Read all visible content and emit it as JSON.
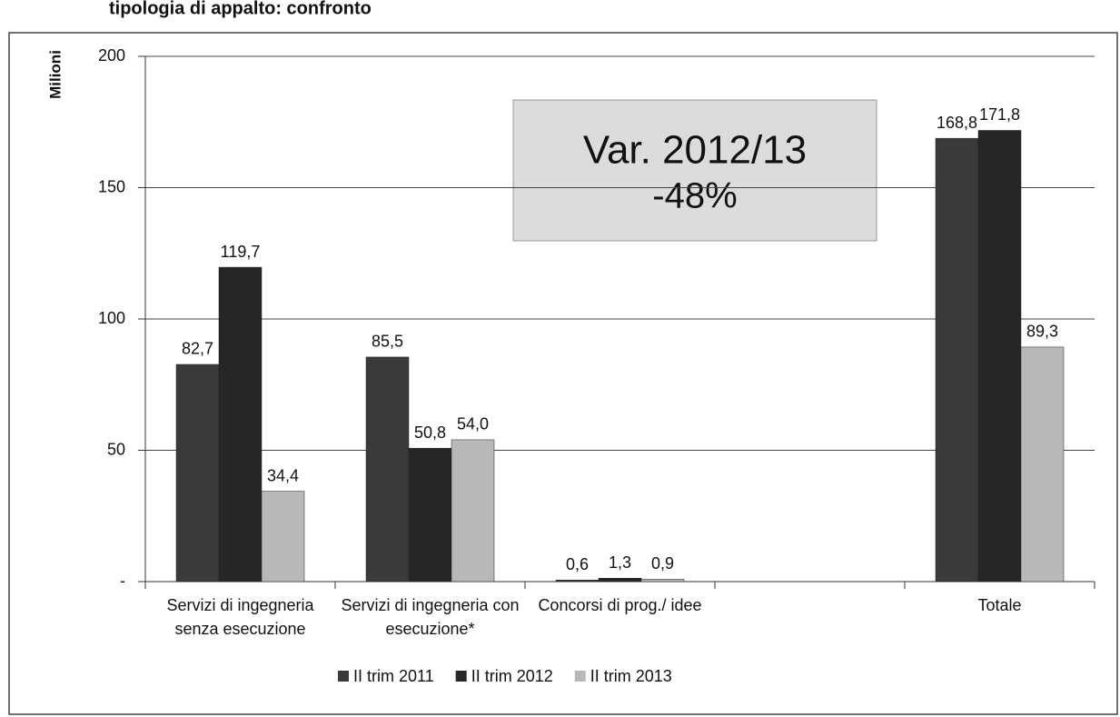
{
  "chart_data": {
    "type": "bar",
    "title": "tipologia di appalto: confronto",
    "y_label": "Milioni",
    "annotation": [
      "Var. 2012/13",
      "-48%"
    ],
    "categories": [
      "Servizi di ingegneria senza esecuzione",
      "Servizi di ingegneria con esecuzione*",
      "Concorsi di prog./ idee",
      null,
      "Totale"
    ],
    "series": [
      {
        "name": "II trim 2011",
        "color": "#3a3a3a",
        "values": [
          82.7,
          85.5,
          0.6,
          null,
          168.8
        ],
        "value_labels": [
          "82,7",
          "85,5",
          "0,6",
          null,
          "168,8"
        ]
      },
      {
        "name": "II trim 2012",
        "color": "#262626",
        "values": [
          119.7,
          50.8,
          1.3,
          null,
          171.8
        ],
        "value_labels": [
          "119,7",
          "50,8",
          "1,3",
          null,
          "171,8"
        ]
      },
      {
        "name": "II trim 2013",
        "color": "#b8b8b8",
        "values": [
          34.4,
          54.0,
          0.9,
          null,
          89.3
        ],
        "value_labels": [
          "34,4",
          "54,0",
          "0,9",
          null,
          "89,3"
        ]
      }
    ],
    "ylim": [
      0,
      200
    ],
    "yticks": [
      {
        "value": 0,
        "label": "-"
      },
      50,
      100,
      150,
      200
    ],
    "grid": true,
    "legend": "bottom"
  }
}
